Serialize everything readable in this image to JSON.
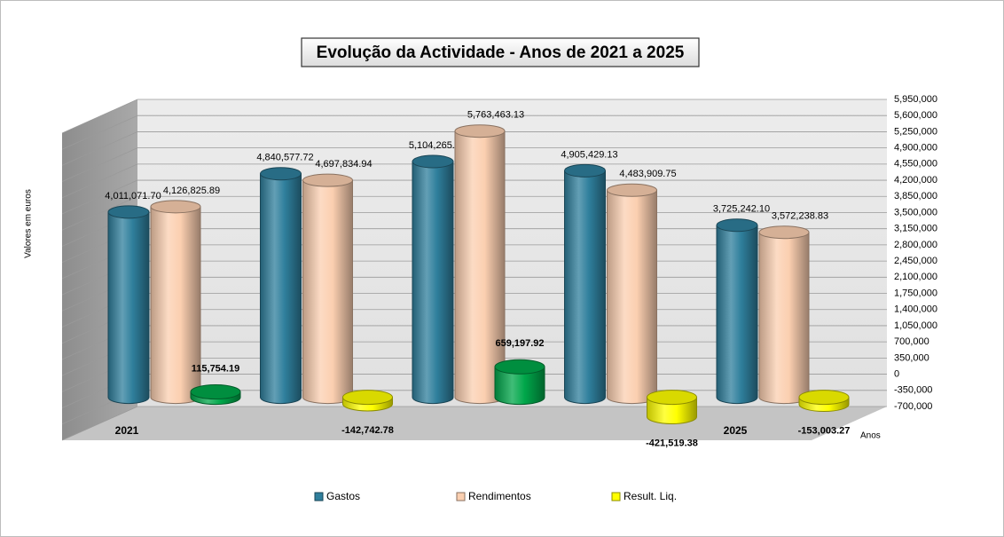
{
  "chart_data": {
    "type": "cylinder-bar",
    "title": "Evolução da Actividade - Anos de 2021 a 2025",
    "y_label": "Valores em euros",
    "x_label": "Anos",
    "categories": [
      "2021",
      null,
      null,
      null,
      "2025"
    ],
    "series": [
      {
        "name": "Gastos",
        "color": "#2f7f9c",
        "values": [
          4011071.7,
          4840577.72,
          5104265.21,
          4905429.13,
          3725242.1
        ],
        "value_labels": [
          "4,011,071.70",
          "4,840,577.72",
          "5,104,265.21",
          "4,905,429.13",
          "3,725,242.10"
        ]
      },
      {
        "name": "Rendimentos",
        "color": "#fbcfb0",
        "values": [
          4126825.89,
          4697834.94,
          5763463.13,
          4483909.75,
          3572238.83
        ],
        "value_labels": [
          "4,126,825.89",
          "4,697,834.94",
          "5,763,463.13",
          "4,483,909.75",
          "3,572,238.83"
        ]
      },
      {
        "name": "Result. Liq.",
        "color": "#ffff00",
        "positive_color": "#00a74a",
        "values": [
          115754.19,
          -142742.78,
          659197.92,
          -421519.38,
          -153003.27
        ],
        "value_labels": [
          "115,754.19",
          "-142,742.78",
          "659,197.92",
          "-421,519.38",
          "-153,003.27"
        ]
      }
    ],
    "ylim": [
      -700000,
      5950000
    ],
    "yticks": [
      {
        "value": -700000,
        "label": "-700,000"
      },
      {
        "value": -350000,
        "label": "-350,000"
      },
      0,
      {
        "value": 350000,
        "label": "350,000"
      },
      {
        "value": 700000,
        "label": "700,000"
      },
      {
        "value": 1050000,
        "label": "1,050,000"
      },
      {
        "value": 1400000,
        "label": "1,400,000"
      },
      {
        "value": 1750000,
        "label": "1,750,000"
      },
      {
        "value": 2100000,
        "label": "2,100,000"
      },
      {
        "value": 2450000,
        "label": "2,450,000"
      },
      {
        "value": 2800000,
        "label": "2,800,000"
      },
      {
        "value": 3150000,
        "label": "3,150,000"
      },
      {
        "value": 3500000,
        "label": "3,500,000"
      },
      {
        "value": 3850000,
        "label": "3,850,000"
      },
      {
        "value": 4200000,
        "label": "4,200,000"
      },
      {
        "value": 4550000,
        "label": "4,550,000"
      },
      {
        "value": 4900000,
        "label": "4,900,000"
      },
      {
        "value": 5250000,
        "label": "5,250,000"
      },
      {
        "value": 5600000,
        "label": "5,600,000"
      },
      {
        "value": 5950000,
        "label": "5,950,000"
      }
    ],
    "grid": true,
    "legend": "bottom"
  }
}
